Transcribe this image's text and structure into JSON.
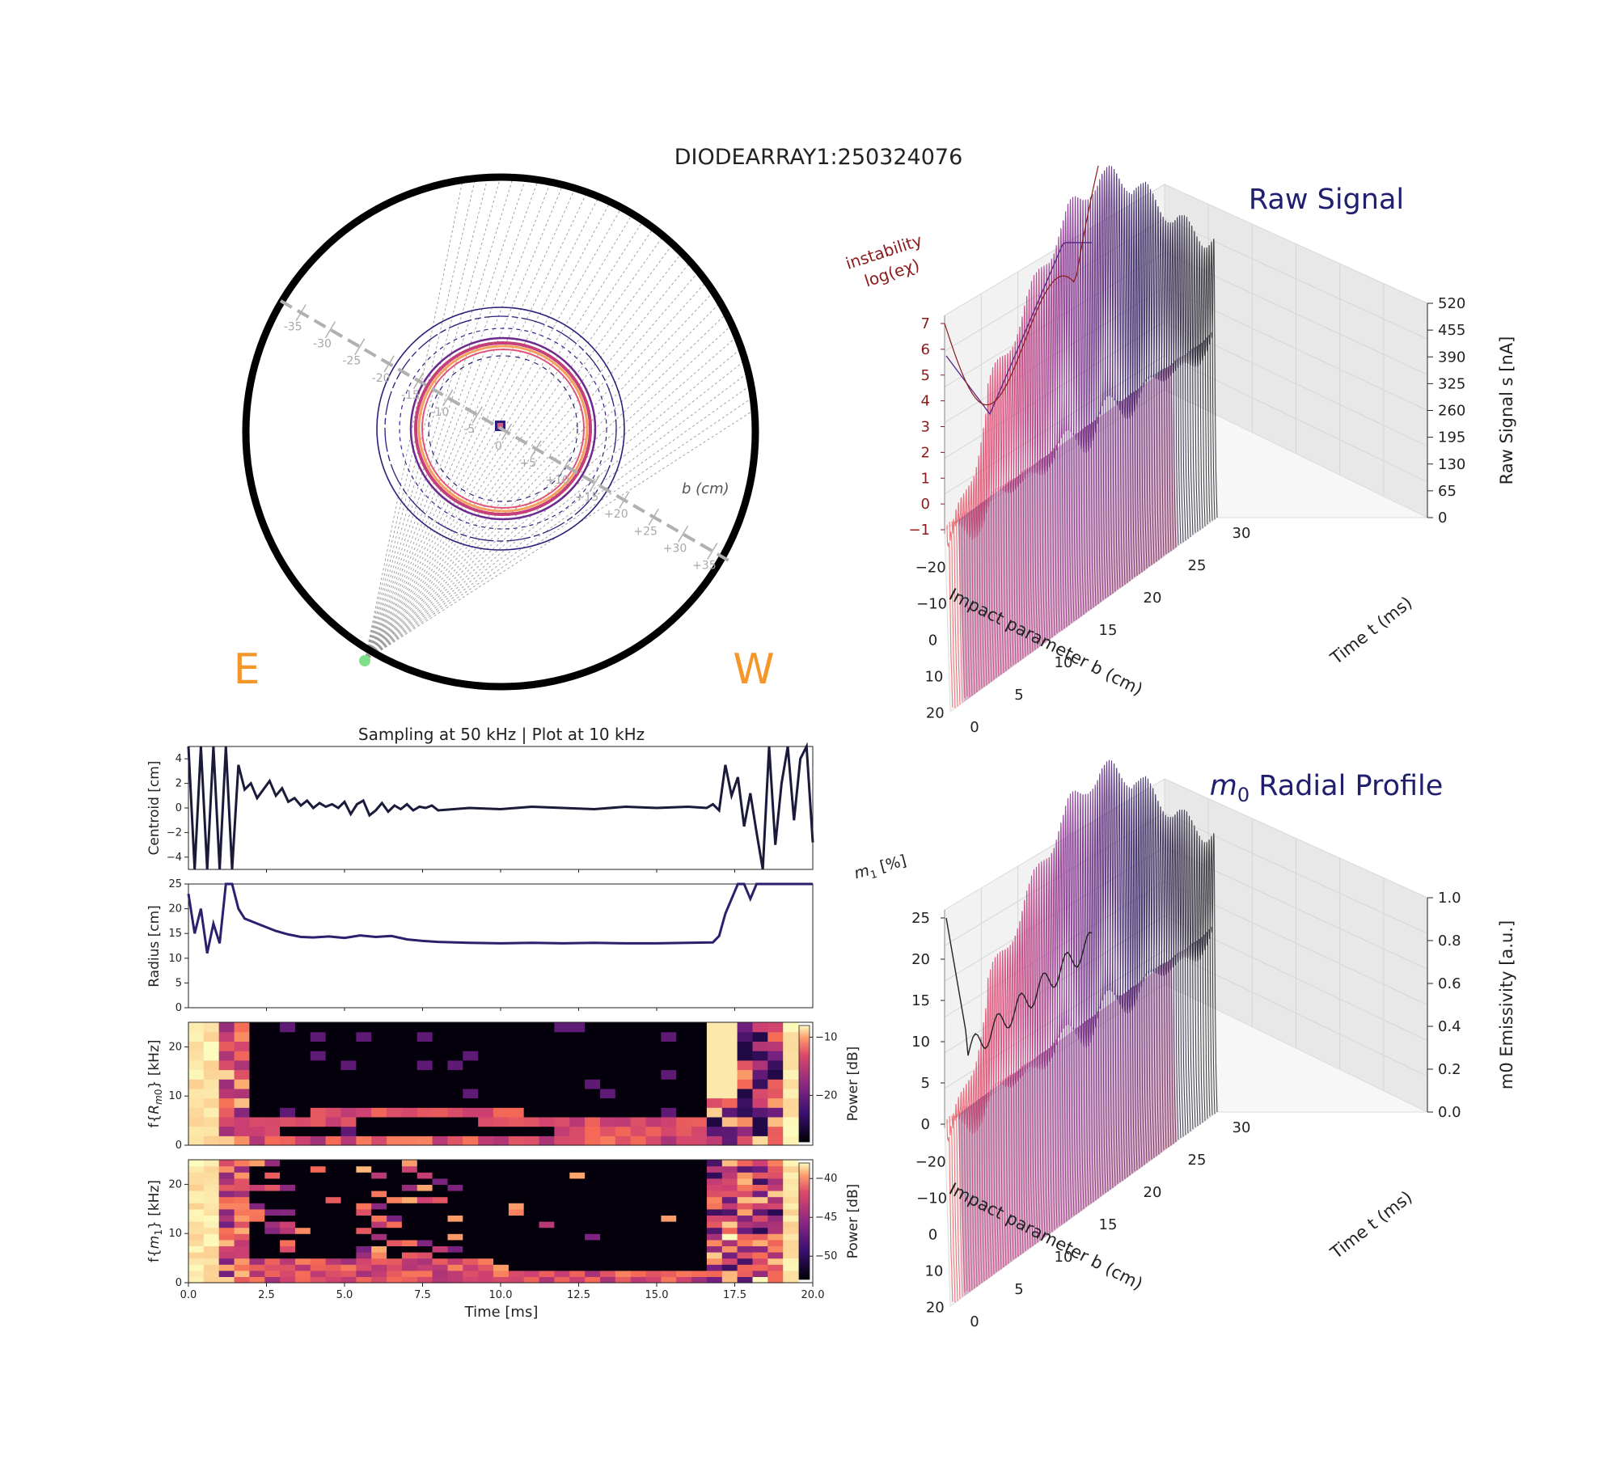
{
  "figure": {
    "title": "DIODEARRAY1:250324076",
    "compass_east": "E",
    "compass_west": "W",
    "b_axis_label": "b (cm)",
    "b_axis_ticks": [
      "-35",
      "-30",
      "-25",
      "-20",
      "-15",
      "-10",
      "-5",
      "0",
      "+5",
      "+10",
      "+15",
      "+20",
      "+25",
      "+30",
      "+35"
    ],
    "sampling_title": "Sampling at 50 kHz | Plot at 10 kHz",
    "instability_label_line1": "instability",
    "instability_label_line2": "log(eχ)",
    "raw_title": "Raw Signal",
    "m0_title_math": "m",
    "m0_title_sub": "0",
    "m0_title_rest": " Radial Profile",
    "m1_label": "m",
    "m1_label_sub": "1",
    "m1_label_rest": " [%]",
    "colors": {
      "accent_title": "#1f1f6e",
      "instability": "#8b1a1a",
      "compass": "#f5962a",
      "detector": "#7fe08a",
      "contour_outer": "#2a1f7a",
      "contour_inner": "#f4a15c"
    }
  },
  "chart_data": [
    {
      "id": "centroid",
      "type": "line",
      "title": "Sampling at 50 kHz | Plot at 10 kHz",
      "ylabel": "Centroid [cm]",
      "xlim": [
        0,
        20
      ],
      "ylim": [
        -5,
        5
      ],
      "yticks": [
        "4",
        "2",
        "0",
        "−2",
        "−4"
      ],
      "ytick_values": [
        4,
        2,
        0,
        -2,
        -4
      ],
      "color": "#1a1a3a",
      "x": [
        0.0,
        0.2,
        0.4,
        0.6,
        0.8,
        1.0,
        1.2,
        1.4,
        1.6,
        1.8,
        2.0,
        2.2,
        2.4,
        2.6,
        2.8,
        3.0,
        3.2,
        3.4,
        3.6,
        3.8,
        4.0,
        4.2,
        4.4,
        4.6,
        4.8,
        5.0,
        5.2,
        5.4,
        5.6,
        5.8,
        6.0,
        6.2,
        6.4,
        6.6,
        6.8,
        7.0,
        7.2,
        7.4,
        7.6,
        7.8,
        8.0,
        9.0,
        10.0,
        11.0,
        12.0,
        13.0,
        14.0,
        15.0,
        16.0,
        16.6,
        16.8,
        17.0,
        17.2,
        17.4,
        17.6,
        17.8,
        18.0,
        18.2,
        18.4,
        18.6,
        18.8,
        19.0,
        19.2,
        19.4,
        19.6,
        19.8,
        20.0
      ],
      "y": [
        5,
        -5,
        5,
        -5,
        5,
        -5,
        5,
        -5,
        3.5,
        1.5,
        2.0,
        0.8,
        1.5,
        2.2,
        1.0,
        1.6,
        0.5,
        0.8,
        0.2,
        0.6,
        0.0,
        0.4,
        0.1,
        0.3,
        0.0,
        0.5,
        -0.5,
        0.3,
        0.6,
        -0.6,
        -0.2,
        0.4,
        -0.3,
        0.2,
        -0.1,
        0.3,
        -0.2,
        0.1,
        0.0,
        0.2,
        -0.2,
        0.0,
        -0.1,
        0.1,
        0.0,
        -0.1,
        0.1,
        0.0,
        0.1,
        0.0,
        0.3,
        -0.2,
        3.5,
        1.0,
        2.5,
        -1.5,
        1.2,
        -2.0,
        -5,
        5,
        -3,
        2,
        5,
        -1,
        4,
        5,
        -2.8
      ]
    },
    {
      "id": "radius",
      "type": "line",
      "ylabel": "Radius [cm]",
      "xlim": [
        0,
        20
      ],
      "ylim": [
        0,
        25
      ],
      "yticks": [
        "25",
        "20",
        "15",
        "10",
        "5",
        "0"
      ],
      "ytick_values": [
        25,
        20,
        15,
        10,
        5,
        0
      ],
      "color": "#2e1f6e",
      "x": [
        0.0,
        0.2,
        0.4,
        0.6,
        0.8,
        1.0,
        1.2,
        1.4,
        1.6,
        1.8,
        2.0,
        2.4,
        2.8,
        3.2,
        3.6,
        4.0,
        4.5,
        5.0,
        5.5,
        6.0,
        6.5,
        7.0,
        7.5,
        8.0,
        9.0,
        10.0,
        11.0,
        12.0,
        13.0,
        14.0,
        15.0,
        16.0,
        16.8,
        17.0,
        17.2,
        17.4,
        17.6,
        17.8,
        18.0,
        18.2,
        18.4,
        18.6,
        18.8,
        19.0,
        19.2,
        19.4,
        19.6,
        19.8,
        20.0
      ],
      "y": [
        23,
        15,
        20,
        11,
        17,
        13,
        25,
        25,
        20,
        18,
        17.5,
        16.5,
        15.5,
        14.8,
        14.3,
        14.2,
        14.4,
        14.1,
        14.6,
        14.3,
        14.5,
        13.8,
        13.5,
        13.3,
        13.1,
        13.0,
        13.1,
        13.0,
        13.1,
        13.0,
        13.0,
        13.1,
        13.2,
        14.5,
        19,
        22,
        25,
        25,
        22,
        25,
        25,
        25,
        25,
        25,
        25,
        25,
        25,
        25,
        25
      ]
    },
    {
      "id": "spec_rm0",
      "type": "heatmap",
      "ylabel": "f{R_m0} [kHz]",
      "colorbar_label": "Power [dB]",
      "colorbar_ticks": [
        "−10",
        "−20"
      ],
      "colorbar_tick_values": [
        -10,
        -20
      ],
      "clim": [
        -28,
        -8
      ],
      "xlim": [
        0,
        20
      ],
      "ylim": [
        0,
        25
      ],
      "yticks": [
        "20",
        "10",
        "0"
      ],
      "ytick_values": [
        20,
        10,
        0
      ]
    },
    {
      "id": "spec_m1",
      "type": "heatmap",
      "ylabel": "f{m_1} [kHz]",
      "xlabel": "Time [ms]",
      "colorbar_label": "Power [dB]",
      "colorbar_ticks": [
        "−40",
        "−45",
        "−50"
      ],
      "colorbar_tick_values": [
        -40,
        -45,
        -50
      ],
      "clim": [
        -53,
        -38
      ],
      "xlim": [
        0,
        20
      ],
      "ylim": [
        0,
        25
      ],
      "xticks": [
        "0.0",
        "2.5",
        "5.0",
        "7.5",
        "10.0",
        "12.5",
        "15.0",
        "17.5",
        "20.0"
      ],
      "xtick_values": [
        0,
        2.5,
        5,
        7.5,
        10,
        12.5,
        15,
        17.5,
        20
      ],
      "yticks": [
        "20",
        "10",
        "0"
      ],
      "ytick_values": [
        20,
        10,
        0
      ]
    },
    {
      "id": "raw3d",
      "type": "line",
      "projection": "3d",
      "title": "Raw Signal",
      "xlabel": "Impact parameter b (cm)",
      "ylabel": "Time t (ms)",
      "zlabel": "Raw Signal s [nA]",
      "xticks": [
        "−20",
        "−10",
        "0",
        "10",
        "20"
      ],
      "yticks": [
        "0",
        "5",
        "10",
        "15",
        "20",
        "25",
        "30"
      ],
      "zticks": [
        "0",
        "65",
        "130",
        "195",
        "260",
        "325",
        "390",
        "455",
        "520"
      ],
      "left_axis_label": "instability log(eχ)",
      "left_axis_ticks": [
        "7",
        "6",
        "5",
        "4",
        "3",
        "2",
        "1",
        "0",
        "−1"
      ]
    },
    {
      "id": "m0_3d",
      "type": "line",
      "projection": "3d",
      "title": "m0 Radial Profile",
      "xlabel": "Impact parameter b (cm)",
      "ylabel": "Time t (ms)",
      "zlabel": "m0 Emissivity [a.u.]",
      "xticks": [
        "−20",
        "−10",
        "0",
        "10",
        "20"
      ],
      "yticks": [
        "0",
        "5",
        "10",
        "15",
        "20",
        "25",
        "30"
      ],
      "zticks": [
        "0.0",
        "0.2",
        "0.4",
        "0.6",
        "0.8",
        "1.0"
      ],
      "left_axis_label": "m1 [%]",
      "left_axis_ticks": [
        "25",
        "20",
        "15",
        "10",
        "5",
        "0"
      ]
    }
  ]
}
